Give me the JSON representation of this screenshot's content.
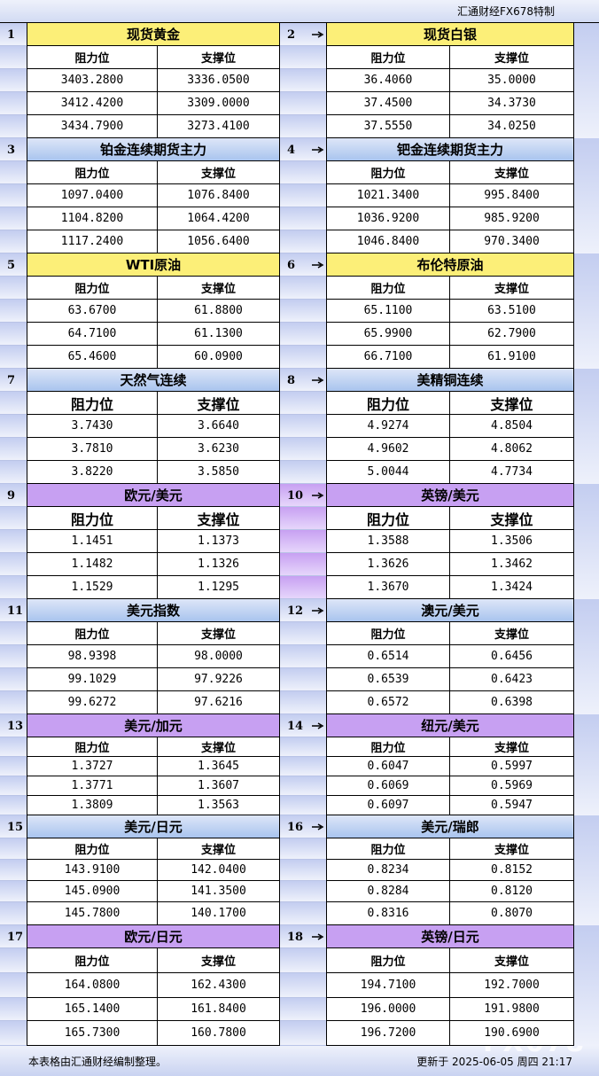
{
  "header": {
    "brand": "汇通财经FX678特制"
  },
  "blocks": [
    {
      "number": "1",
      "title": "现货黄金",
      "columns": [
        "阻力位",
        "支撑位"
      ],
      "rows": [
        [
          "3403.2800",
          "3336.0500"
        ],
        [
          "3412.4200",
          "3309.0000"
        ],
        [
          "3434.7900",
          "3273.4100"
        ]
      ]
    },
    {
      "number": "2",
      "title": "现货白银",
      "columns": [
        "阻力位",
        "支撑位"
      ],
      "rows": [
        [
          "36.4060",
          "35.0000"
        ],
        [
          "37.4500",
          "34.3730"
        ],
        [
          "37.5550",
          "34.0250"
        ]
      ]
    },
    {
      "number": "3",
      "title": "铂金连续期货主力",
      "columns": [
        "阻力位",
        "支撑位"
      ],
      "rows": [
        [
          "1097.0400",
          "1076.8400"
        ],
        [
          "1104.8200",
          "1064.4200"
        ],
        [
          "1117.2400",
          "1056.6400"
        ]
      ]
    },
    {
      "number": "4",
      "title": "钯金连续期货主力",
      "columns": [
        "阻力位",
        "支撑位"
      ],
      "rows": [
        [
          "1021.3400",
          "995.8400"
        ],
        [
          "1036.9200",
          "985.9200"
        ],
        [
          "1046.8400",
          "970.3400"
        ]
      ]
    },
    {
      "number": "5",
      "title": "WTI原油",
      "columns": [
        "阻力位",
        "支撑位"
      ],
      "rows": [
        [
          "63.6700",
          "61.8800"
        ],
        [
          "64.7100",
          "61.1300"
        ],
        [
          "65.4600",
          "60.0900"
        ]
      ]
    },
    {
      "number": "6",
      "title": "布伦特原油",
      "columns": [
        "阻力位",
        "支撑位"
      ],
      "rows": [
        [
          "65.1100",
          "63.5100"
        ],
        [
          "65.9900",
          "62.7900"
        ],
        [
          "66.7100",
          "61.9100"
        ]
      ]
    },
    {
      "number": "7",
      "title": "天然气连续",
      "columns": [
        "阻力位",
        "支撑位"
      ],
      "rows": [
        [
          "3.7430",
          "3.6640"
        ],
        [
          "3.7810",
          "3.6230"
        ],
        [
          "3.8220",
          "3.5850"
        ]
      ]
    },
    {
      "number": "8",
      "title": "美精铜连续",
      "columns": [
        "阻力位",
        "支撑位"
      ],
      "rows": [
        [
          "4.9274",
          "4.8504"
        ],
        [
          "4.9602",
          "4.8062"
        ],
        [
          "5.0044",
          "4.7734"
        ]
      ]
    },
    {
      "number": "9",
      "title": "欧元/美元",
      "columns": [
        "阻力位",
        "支撑位"
      ],
      "rows": [
        [
          "1.1451",
          "1.1373"
        ],
        [
          "1.1482",
          "1.1326"
        ],
        [
          "1.1529",
          "1.1295"
        ]
      ]
    },
    {
      "number": "10",
      "title": "英镑/美元",
      "columns": [
        "阻力位",
        "支撑位"
      ],
      "rows": [
        [
          "1.3588",
          "1.3506"
        ],
        [
          "1.3626",
          "1.3462"
        ],
        [
          "1.3670",
          "1.3424"
        ]
      ]
    },
    {
      "number": "11",
      "title": "美元指数",
      "columns": [
        "阻力位",
        "支撑位"
      ],
      "rows": [
        [
          "98.9398",
          "98.0000"
        ],
        [
          "99.1029",
          "97.9226"
        ],
        [
          "99.6272",
          "97.6216"
        ]
      ]
    },
    {
      "number": "12",
      "title": "澳元/美元",
      "columns": [
        "阻力位",
        "支撑位"
      ],
      "rows": [
        [
          "0.6514",
          "0.6456"
        ],
        [
          "0.6539",
          "0.6423"
        ],
        [
          "0.6572",
          "0.6398"
        ]
      ]
    },
    {
      "number": "13",
      "title": "美元/加元",
      "columns": [
        "阻力位",
        "支撑位"
      ],
      "rows": [
        [
          "1.3727",
          "1.3645"
        ],
        [
          "1.3771",
          "1.3607"
        ],
        [
          "1.3809",
          "1.3563"
        ]
      ]
    },
    {
      "number": "14",
      "title": "纽元/美元",
      "columns": [
        "阻力位",
        "支撑位"
      ],
      "rows": [
        [
          "0.6047",
          "0.5997"
        ],
        [
          "0.6069",
          "0.5969"
        ],
        [
          "0.6097",
          "0.5947"
        ]
      ]
    },
    {
      "number": "15",
      "title": "美元/日元",
      "columns": [
        "阻力位",
        "支撑位"
      ],
      "rows": [
        [
          "143.9100",
          "142.0400"
        ],
        [
          "145.0900",
          "141.3500"
        ],
        [
          "145.7800",
          "140.1700"
        ]
      ]
    },
    {
      "number": "16",
      "title": "美元/瑞郎",
      "columns": [
        "阻力位",
        "支撑位"
      ],
      "rows": [
        [
          "0.8234",
          "0.8152"
        ],
        [
          "0.8284",
          "0.8120"
        ],
        [
          "0.8316",
          "0.8070"
        ]
      ]
    },
    {
      "number": "17",
      "title": "欧元/日元",
      "columns": [
        "阻力位",
        "支撑位"
      ],
      "rows": [
        [
          "164.0800",
          "162.4300"
        ],
        [
          "165.1400",
          "161.8400"
        ],
        [
          "165.7300",
          "160.7800"
        ]
      ]
    },
    {
      "number": "18",
      "title": "英镑/日元",
      "columns": [
        "阻力位",
        "支撑位"
      ],
      "rows": [
        [
          "194.7100",
          "192.7000"
        ],
        [
          "196.0000",
          "191.9800"
        ],
        [
          "196.7200",
          "190.6900"
        ]
      ]
    }
  ],
  "footer": {
    "note": "本表格由汇通财经编制整理。",
    "updated": "更新于 2025-06-05 周四 21:17",
    "watermark": "FX678"
  }
}
